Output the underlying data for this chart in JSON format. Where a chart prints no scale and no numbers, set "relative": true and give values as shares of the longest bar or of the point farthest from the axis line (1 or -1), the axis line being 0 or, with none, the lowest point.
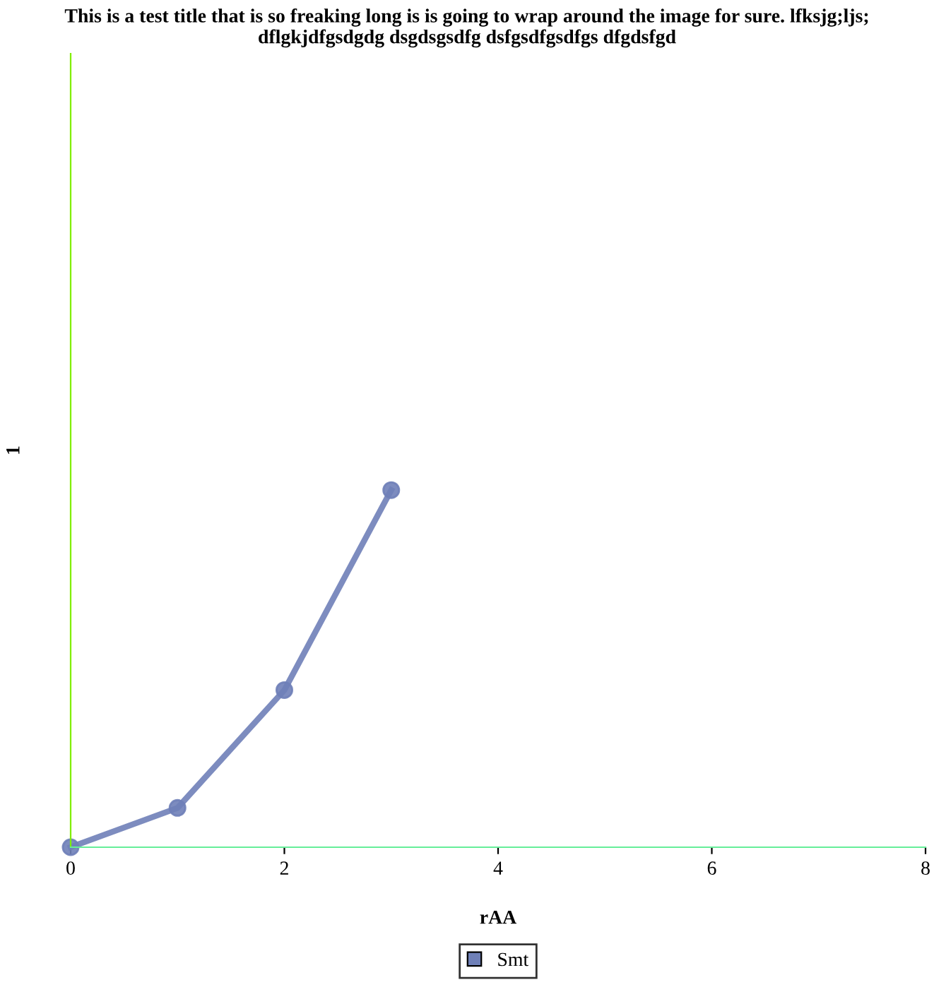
{
  "chart_data": {
    "type": "line",
    "title": "This is a test title that is so freaking long is is going to wrap around the image for sure. lfksjg;ljs; dflgkjdfgsdgdg dsgdsgsdfg dsfgsdfgsdfgs dfgdsfgd",
    "xlabel": "rAA",
    "ylabel": "1",
    "relative": true,
    "x": [
      0,
      1,
      2,
      3
    ],
    "xlim": [
      0,
      8
    ],
    "xticks": [
      0,
      2,
      4,
      6,
      8
    ],
    "series": [
      {
        "name": "Smt",
        "color": "#6f80b8",
        "values": [
          0,
          0.11,
          0.44,
          1
        ]
      }
    ],
    "marker": "circle",
    "line_style": "solid",
    "grid": false,
    "legend": "bottom"
  }
}
